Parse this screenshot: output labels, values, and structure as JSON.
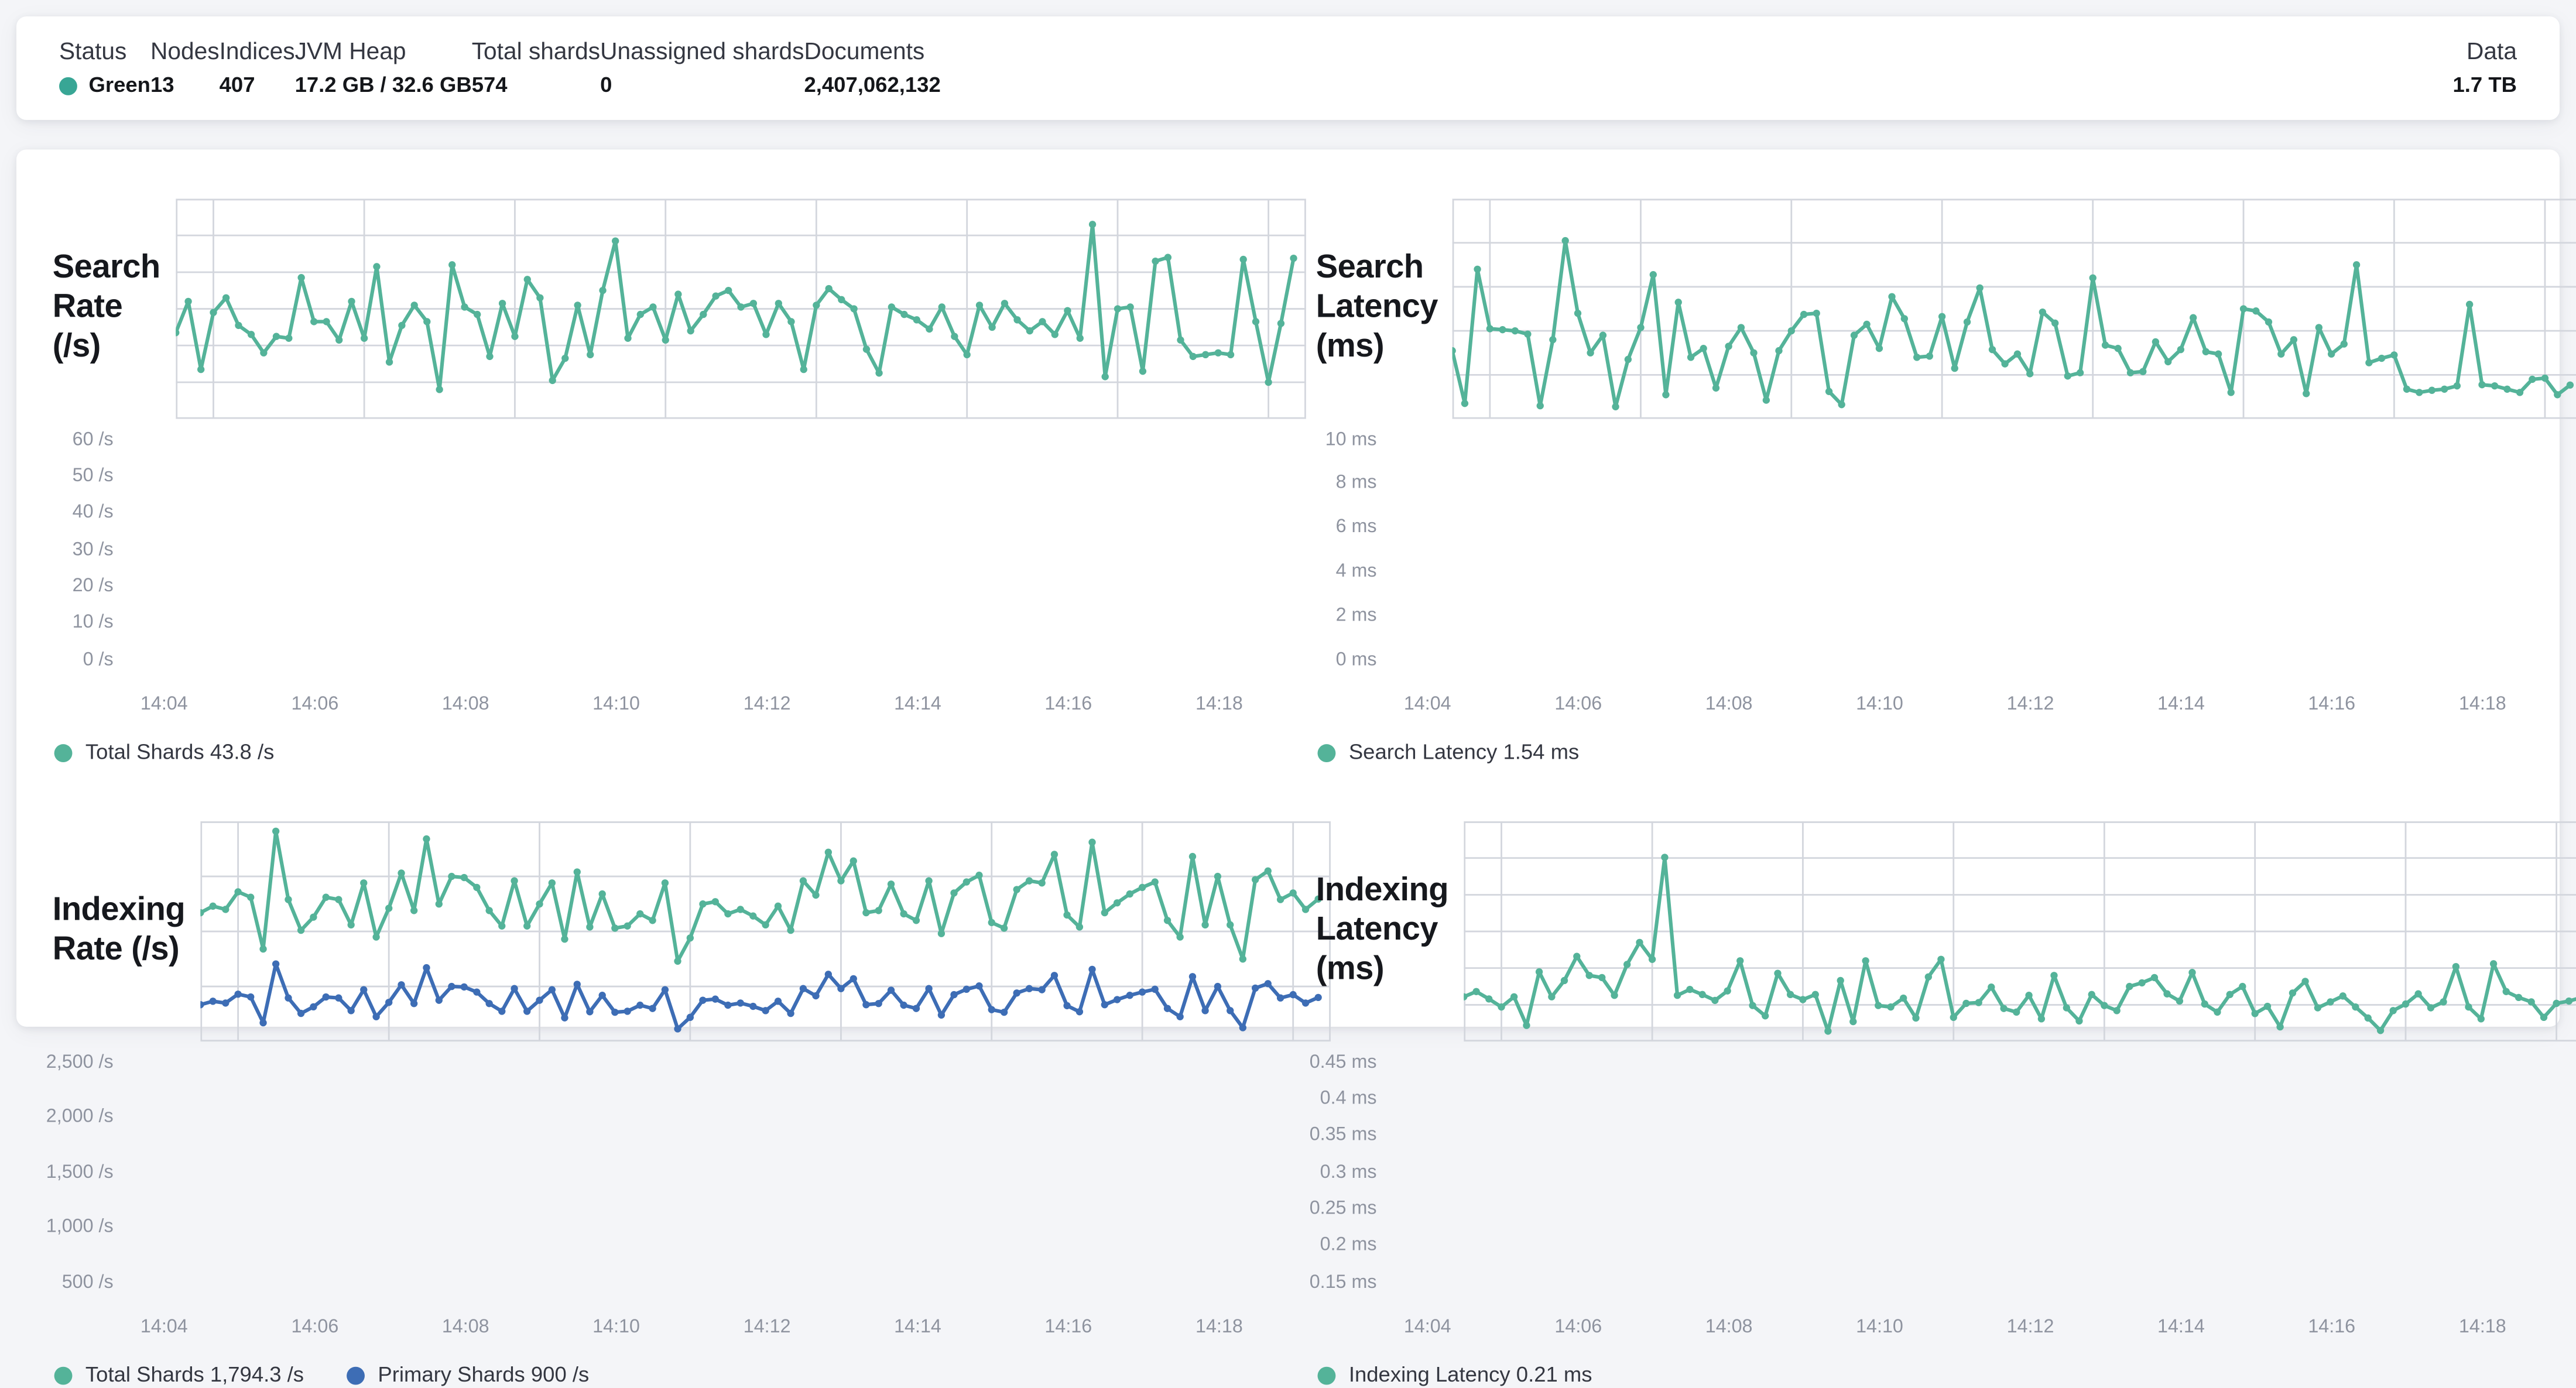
{
  "summary_bar": {
    "stats": [
      {
        "label": "Status",
        "value": "Green",
        "dot": true,
        "dot_color": "#38a695"
      },
      {
        "label": "Nodes",
        "value": "13"
      },
      {
        "label": "Indices",
        "value": "407"
      },
      {
        "label": "JVM Heap",
        "value": "17.2 GB / 32.6 GB"
      },
      {
        "label": "Total shards",
        "value": "574"
      },
      {
        "label": "Unassigned shards",
        "value": "0"
      },
      {
        "label": "Documents",
        "value": "2,407,062,132"
      },
      {
        "label": "Data",
        "value": "1.7 TB",
        "align": "right"
      }
    ]
  },
  "colors": {
    "teal": "#54b399",
    "blue": "#3d6db5",
    "status_green": "#38a695",
    "grid": "#d3d6dd",
    "axis_text": "#8e939f"
  },
  "icons": {
    "info": "info-icon"
  },
  "chart_data": [
    {
      "type": "line",
      "title": "Search Rate (/s)",
      "x_domain": [
        0,
        900
      ],
      "point_interval": 10,
      "x_tick_positions": [
        30,
        150,
        270,
        390,
        510,
        630,
        750,
        870
      ],
      "x_tick_labels": [
        "14:04",
        "14:06",
        "14:08",
        "14:10",
        "14:12",
        "14:14",
        "14:16",
        "14:18"
      ],
      "y_domain": [
        0,
        60
      ],
      "y_tick_values": [
        0,
        10,
        20,
        30,
        40,
        50,
        60
      ],
      "y_tick_labels": [
        "0 /s",
        "10 /s",
        "20 /s",
        "30 /s",
        "40 /s",
        "50 /s",
        "60 /s"
      ],
      "series": [
        {
          "name": "Total Shards",
          "legend_label": "Total Shards 43.8 /s",
          "color": "teal",
          "values": [
            23.5,
            32,
            13.5,
            29,
            33,
            25.5,
            23,
            18,
            22.5,
            22,
            38.5,
            26.5,
            26.5,
            21.5,
            32,
            22,
            41.5,
            15.5,
            25.5,
            31,
            26.5,
            8,
            42,
            30.5,
            28.5,
            17,
            31.5,
            22.5,
            38,
            33,
            10.5,
            16.5,
            31,
            17.5,
            35,
            48.5,
            22,
            28.5,
            30.5,
            21.5,
            34,
            24,
            28.5,
            33.5,
            35,
            30.5,
            31.5,
            23,
            31.5,
            26.5,
            13.5,
            31,
            35.5,
            32.5,
            30,
            19,
            12.5,
            30.5,
            28.5,
            27,
            24.5,
            30.5,
            22.5,
            17.5,
            31,
            25,
            31.5,
            27,
            24,
            26.5,
            23,
            29.5,
            22,
            53,
            11.5,
            30,
            30.5,
            13,
            43,
            44,
            21.5,
            17,
            17.5,
            18,
            17.5,
            43.5,
            26.5,
            10,
            26,
            43.8
          ]
        }
      ]
    },
    {
      "type": "line",
      "title": "Search Latency (ms)",
      "x_domain": [
        0,
        900
      ],
      "point_interval": 10,
      "x_tick_positions": [
        30,
        150,
        270,
        390,
        510,
        630,
        750,
        870
      ],
      "x_tick_labels": [
        "14:04",
        "14:06",
        "14:08",
        "14:10",
        "14:12",
        "14:14",
        "14:16",
        "14:18"
      ],
      "y_domain": [
        0,
        10
      ],
      "y_tick_values": [
        0,
        2,
        4,
        6,
        8,
        10
      ],
      "y_tick_labels": [
        "0 ms",
        "2 ms",
        "4 ms",
        "6 ms",
        "8 ms",
        "10 ms"
      ],
      "series": [
        {
          "name": "Search Latency",
          "legend_label": "Search Latency 1.54 ms",
          "color": "teal",
          "values": [
            3.1,
            0.7,
            6.8,
            4.1,
            4.05,
            4.0,
            3.85,
            0.6,
            3.6,
            8.1,
            4.8,
            3.0,
            3.8,
            0.55,
            2.7,
            4.15,
            6.55,
            1.1,
            5.3,
            2.8,
            3.2,
            1.4,
            3.3,
            4.15,
            3.0,
            0.85,
            3.1,
            4.0,
            4.75,
            4.8,
            1.25,
            0.65,
            3.8,
            4.3,
            3.2,
            5.55,
            4.55,
            2.8,
            2.85,
            4.65,
            2.3,
            4.4,
            5.95,
            3.15,
            2.5,
            2.95,
            2.05,
            4.85,
            4.35,
            1.95,
            2.1,
            6.4,
            3.35,
            3.2,
            2.1,
            2.15,
            3.5,
            2.6,
            3.15,
            4.6,
            3.05,
            2.95,
            1.2,
            5.0,
            4.9,
            4.4,
            2.95,
            3.6,
            1.15,
            4.15,
            2.95,
            3.4,
            7.0,
            2.55,
            2.75,
            2.9,
            1.35,
            1.2,
            1.3,
            1.35,
            1.5,
            5.2,
            1.55,
            1.5,
            1.35,
            1.2,
            1.8,
            1.85,
            1.1,
            1.54
          ]
        }
      ]
    },
    {
      "type": "line",
      "title": "Indexing Rate (/s)",
      "x_domain": [
        0,
        900
      ],
      "point_interval": 10,
      "x_tick_positions": [
        30,
        150,
        270,
        390,
        510,
        630,
        750,
        870
      ],
      "x_tick_labels": [
        "14:04",
        "14:06",
        "14:08",
        "14:10",
        "14:12",
        "14:14",
        "14:16",
        "14:18"
      ],
      "y_domain": [
        500,
        2500
      ],
      "y_tick_values": [
        500,
        1000,
        1500,
        2000,
        2500
      ],
      "y_tick_labels": [
        "500 /s",
        "1,000 /s",
        "1,500 /s",
        "2,000 /s",
        "2,500 /s"
      ],
      "series": [
        {
          "name": "Total Shards",
          "legend_label": "Total Shards 1,794.3 /s",
          "color": "teal",
          "values": [
            1670,
            1730,
            1700,
            1860,
            1810,
            1340,
            2410,
            1790,
            1510,
            1630,
            1810,
            1790,
            1560,
            1940,
            1450,
            1710,
            2030,
            1690,
            2340,
            1750,
            2000,
            1990,
            1900,
            1690,
            1550,
            1960,
            1550,
            1750,
            1940,
            1430,
            2040,
            1540,
            1840,
            1530,
            1550,
            1660,
            1600,
            1940,
            1230,
            1440,
            1750,
            1770,
            1660,
            1700,
            1640,
            1560,
            1730,
            1510,
            1960,
            1830,
            2220,
            1960,
            2140,
            1670,
            1690,
            1930,
            1660,
            1600,
            1960,
            1480,
            1850,
            1950,
            2010,
            1580,
            1530,
            1880,
            1960,
            1940,
            2200,
            1650,
            1540,
            2310,
            1670,
            1760,
            1840,
            1900,
            1950,
            1600,
            1450,
            2180,
            1560,
            2000,
            1560,
            1250,
            1970,
            2050,
            1790,
            1850,
            1700,
            1794.3
          ]
        },
        {
          "name": "Primary Shards",
          "legend_label": "Primary Shards 900 /s",
          "color": "blue",
          "values": [
            835,
            865,
            850,
            930,
            905,
            670,
            1205,
            895,
            755,
            815,
            905,
            895,
            780,
            970,
            725,
            855,
            1015,
            845,
            1170,
            875,
            1000,
            995,
            950,
            845,
            775,
            980,
            775,
            875,
            970,
            715,
            1020,
            770,
            920,
            765,
            775,
            830,
            800,
            970,
            615,
            720,
            875,
            885,
            830,
            850,
            820,
            780,
            865,
            755,
            980,
            915,
            1110,
            980,
            1070,
            835,
            845,
            965,
            830,
            800,
            980,
            740,
            925,
            975,
            1005,
            790,
            765,
            940,
            980,
            970,
            1100,
            825,
            770,
            1155,
            835,
            880,
            920,
            950,
            975,
            800,
            725,
            1090,
            780,
            1000,
            780,
            625,
            985,
            1025,
            895,
            925,
            850,
            900
          ]
        }
      ]
    },
    {
      "type": "line",
      "title": "Indexing Latency (ms)",
      "x_domain": [
        0,
        900
      ],
      "point_interval": 10,
      "x_tick_positions": [
        30,
        150,
        270,
        390,
        510,
        630,
        750,
        870
      ],
      "x_tick_labels": [
        "14:04",
        "14:06",
        "14:08",
        "14:10",
        "14:12",
        "14:14",
        "14:16",
        "14:18"
      ],
      "y_domain": [
        0.15,
        0.45
      ],
      "y_tick_values": [
        0.15,
        0.2,
        0.25,
        0.3,
        0.35,
        0.4,
        0.45
      ],
      "y_tick_labels": [
        "0.15 ms",
        "0.2 ms",
        "0.25 ms",
        "0.3 ms",
        "0.35 ms",
        "0.4 ms",
        "0.45 ms"
      ],
      "series": [
        {
          "name": "Indexing Latency",
          "legend_label": "Indexing Latency 0.21 ms",
          "color": "teal",
          "values": [
            0.211,
            0.218,
            0.208,
            0.197,
            0.211,
            0.172,
            0.245,
            0.211,
            0.233,
            0.266,
            0.24,
            0.237,
            0.213,
            0.255,
            0.285,
            0.262,
            0.401,
            0.213,
            0.221,
            0.214,
            0.206,
            0.219,
            0.26,
            0.199,
            0.185,
            0.243,
            0.214,
            0.207,
            0.214,
            0.164,
            0.233,
            0.177,
            0.26,
            0.199,
            0.197,
            0.209,
            0.182,
            0.238,
            0.262,
            0.183,
            0.202,
            0.203,
            0.224,
            0.195,
            0.19,
            0.213,
            0.181,
            0.24,
            0.196,
            0.178,
            0.214,
            0.199,
            0.192,
            0.225,
            0.23,
            0.237,
            0.215,
            0.205,
            0.244,
            0.201,
            0.19,
            0.214,
            0.225,
            0.188,
            0.198,
            0.17,
            0.216,
            0.232,
            0.196,
            0.204,
            0.212,
            0.197,
            0.182,
            0.165,
            0.192,
            0.201,
            0.215,
            0.196,
            0.204,
            0.252,
            0.197,
            0.181,
            0.256,
            0.218,
            0.21,
            0.204,
            0.183,
            0.202,
            0.205,
            0.21
          ]
        }
      ]
    }
  ]
}
